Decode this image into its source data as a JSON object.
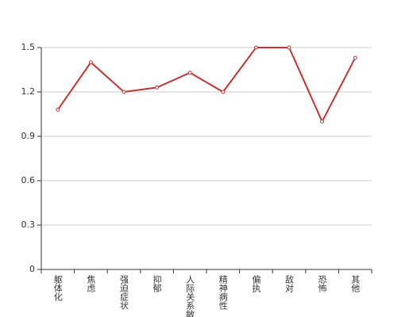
{
  "chart_data": {
    "type": "line",
    "categories": [
      "躯体化",
      "焦虑",
      "强迫症状",
      "抑郁",
      "人际关系敏感",
      "精神病性",
      "偏执",
      "敌对",
      "恐怖",
      "其他"
    ],
    "values": [
      1.08,
      1.4,
      1.2,
      1.23,
      1.33,
      1.2,
      1.5,
      1.5,
      1.0,
      1.43
    ],
    "color": "#c23531",
    "ylim": [
      0,
      1.5
    ],
    "yticks": [
      0,
      0.3,
      0.6,
      0.9,
      1.2,
      1.5
    ],
    "grid": true
  }
}
